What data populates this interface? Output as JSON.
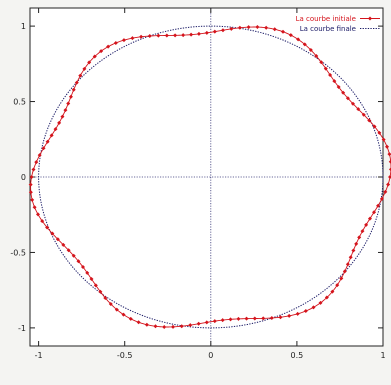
{
  "chart_data": {
    "type": "line",
    "title": "",
    "xlabel": "",
    "ylabel": "",
    "xlim": [
      -1.05,
      1.0
    ],
    "ylim": [
      -1.12,
      1.12
    ],
    "x_ticks": [
      "-1",
      "-0.5",
      "0",
      "0.5",
      "1"
    ],
    "x_tick_values": [
      -1,
      -0.5,
      0,
      0.5,
      1
    ],
    "y_ticks": [
      "1",
      "0.5",
      "0",
      "-0.5",
      "-1"
    ],
    "y_tick_values": [
      1,
      0.5,
      0,
      -0.5,
      -1
    ],
    "axes_lines": {
      "x0": true,
      "y0": true
    },
    "legend_position": "top-right",
    "series": [
      {
        "name": "La courbe initiale",
        "style": "dotted-markers",
        "color": "#d4141c",
        "radius_formula": "1 + 0.05*cos(6*(theta - 1.15))",
        "points": 130
      },
      {
        "name": "La courbe finale",
        "style": "dotted-line",
        "color": "#1a1a66",
        "radius_formula": "1",
        "points": 360
      }
    ]
  }
}
